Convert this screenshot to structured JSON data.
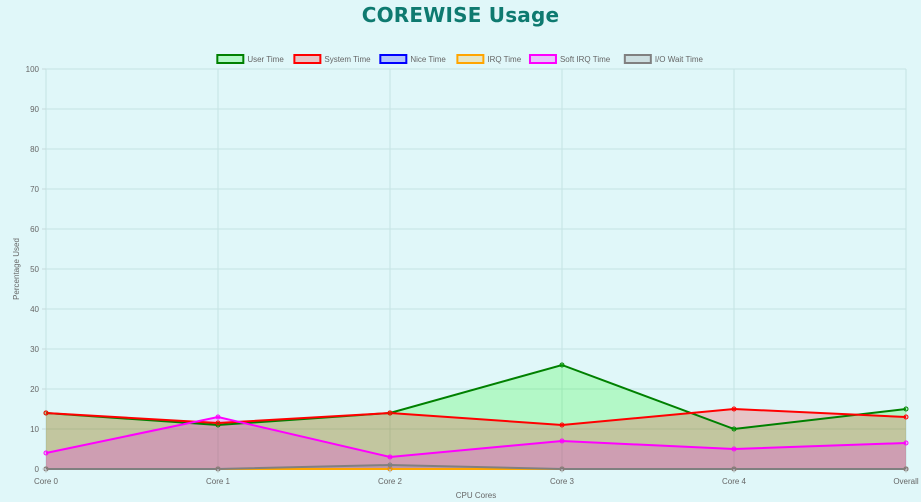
{
  "chart_data": {
    "type": "area",
    "title": "COREWISE Usage",
    "xlabel": "CPU Cores",
    "ylabel": "Percentage Used",
    "categories": [
      "Core 0",
      "Core 1",
      "Core 2",
      "Core 3",
      "Core 4",
      "Overall"
    ],
    "ylim": [
      0,
      100
    ],
    "yticks": [
      0,
      10,
      20,
      30,
      40,
      50,
      60,
      70,
      80,
      90,
      100
    ],
    "grid": true,
    "legend_position": "top-center",
    "series": [
      {
        "name": "User Time",
        "values": [
          14,
          11,
          14,
          26,
          10,
          15
        ],
        "color": "#008000",
        "fill": "rgba(0,255,0,0.2)"
      },
      {
        "name": "System Time",
        "values": [
          14,
          11.5,
          14,
          11,
          15,
          13
        ],
        "color": "#ff0000",
        "fill": "rgba(255,0,0,0.2)"
      },
      {
        "name": "Nice Time",
        "values": [
          0,
          0,
          0,
          0,
          0,
          0
        ],
        "color": "#0000ff",
        "fill": "rgba(0,0,255,0.2)"
      },
      {
        "name": "IRQ Time",
        "values": [
          0,
          0,
          0,
          0,
          0,
          0
        ],
        "color": "#ffa500",
        "fill": "rgba(255,165,0,0.2)"
      },
      {
        "name": "Soft IRQ Time",
        "values": [
          4,
          13,
          3,
          7,
          5,
          6.5
        ],
        "color": "#ff00ff",
        "fill": "rgba(255,0,255,0.2)"
      },
      {
        "name": "I/O Wait Time",
        "values": [
          0,
          0,
          1,
          0,
          0,
          0
        ],
        "color": "#808080",
        "fill": "rgba(128,128,128,0.2)"
      }
    ]
  }
}
